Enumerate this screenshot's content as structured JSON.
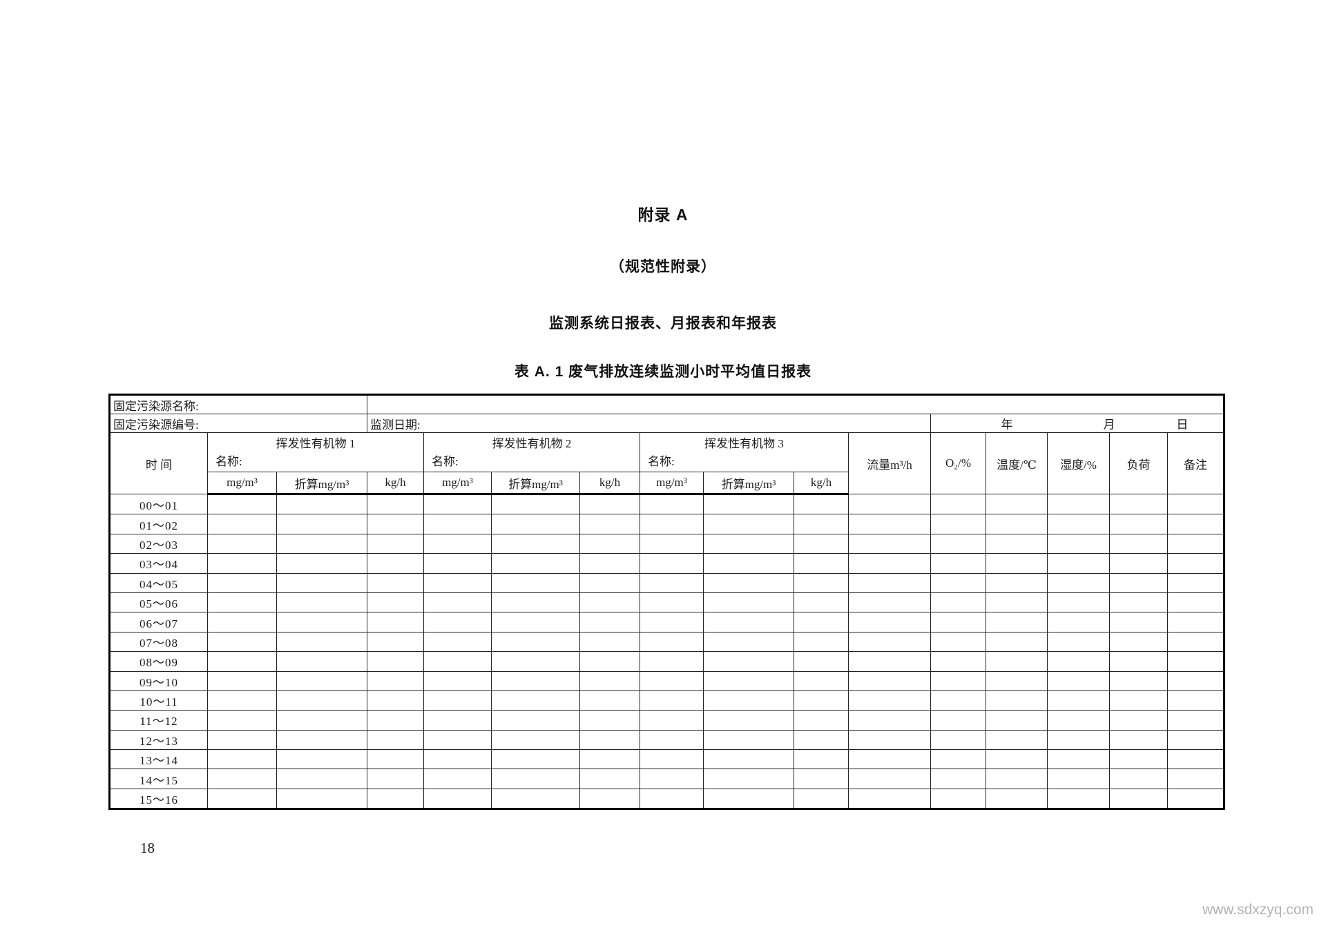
{
  "page": {
    "appendix_title": "附录 A",
    "appendix_subtitle": "（规范性附录）",
    "section_title": "监测系统日报表、月报表和年报表",
    "table_title": "表 A. 1  废气排放连续监测小时平均值日报表",
    "page_number": "18",
    "watermark": "www.sdxzyq.com"
  },
  "table": {
    "source_name_label": "固定污染源名称:",
    "source_id_label": "固定污染源编号:",
    "monitor_date_label": "监测日期:",
    "year_label": "年",
    "month_label": "月",
    "day_label": "日",
    "time_header": "时 间",
    "voc_groups": [
      {
        "title": "挥发性有机物 1",
        "name_label": "名称:"
      },
      {
        "title": "挥发性有机物 2",
        "name_label": "名称:"
      },
      {
        "title": "挥发性有机物 3",
        "name_label": "名称:"
      }
    ],
    "unit_headers": [
      "mg/m³",
      "折算mg/m³",
      "kg/h"
    ],
    "right_headers": [
      "流量m³/h",
      "O₂/%",
      "温度/℃",
      "湿度/%",
      "负荷",
      "备注"
    ],
    "time_rows": [
      "00～01",
      "01～02",
      "02～03",
      "03～04",
      "04～05",
      "05～06",
      "06～07",
      "07～08",
      "08～09",
      "09～10",
      "10～11",
      "11～12",
      "12～13",
      "13～14",
      "14～15",
      "15～16"
    ]
  }
}
